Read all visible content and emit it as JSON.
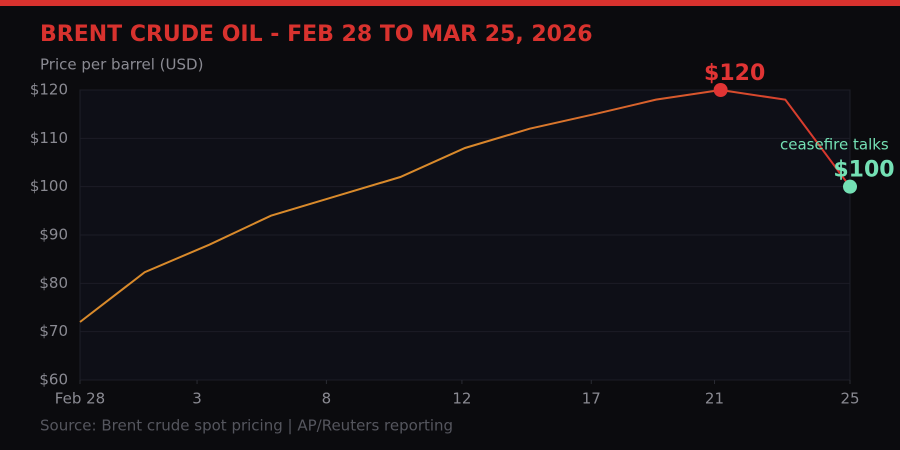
{
  "chart_data": {
    "type": "line",
    "title": "BRENT CRUDE OIL - FEB 28 TO MAR 25, 2026",
    "subtitle": "Price per barrel (USD)",
    "source": "Source: Brent crude spot pricing | AP/Reuters reporting",
    "x": [
      0,
      2.1,
      4.2,
      6.2,
      8.3,
      10.4,
      12.5,
      14.6,
      16.7,
      18.7,
      20.8,
      22.9,
      25
    ],
    "series": [
      {
        "values": [
          72,
          82.3,
          88,
          94,
          98,
          102,
          108,
          112,
          115,
          118,
          120,
          118,
          100
        ],
        "colors": [
          "#d98a2b",
          "#d8322e"
        ],
        "value_labels": [
          null,
          null,
          null,
          null,
          null,
          null,
          null,
          null,
          null,
          null,
          "$120",
          null,
          "$100"
        ],
        "label_colors": [
          null,
          null,
          null,
          null,
          null,
          null,
          null,
          null,
          null,
          null,
          "#e03434",
          null,
          "#74e0b4"
        ]
      }
    ],
    "annotations": [
      {
        "text": "ceasefire talks",
        "color": "#74e0b4"
      }
    ],
    "xlim": [
      0,
      25
    ],
    "xticks": [
      {
        "value": 0,
        "label": "Feb 28"
      },
      {
        "value": 3.8,
        "label": "3"
      },
      {
        "value": 8,
        "label": "8"
      },
      {
        "value": 12.4,
        "label": "12"
      },
      {
        "value": 16.6,
        "label": "17"
      },
      {
        "value": 20.6,
        "label": "21"
      },
      {
        "value": 25,
        "label": "25"
      }
    ],
    "ylim": [
      60,
      120
    ],
    "yticks": [
      {
        "value": 60,
        "label": "$60"
      },
      {
        "value": 70,
        "label": "$70"
      },
      {
        "value": 80,
        "label": "$80"
      },
      {
        "value": 90,
        "label": "$90"
      },
      {
        "value": 100,
        "label": "$100"
      },
      {
        "value": 110,
        "label": "$110"
      },
      {
        "value": 120,
        "label": "$120"
      }
    ],
    "grid": true
  }
}
